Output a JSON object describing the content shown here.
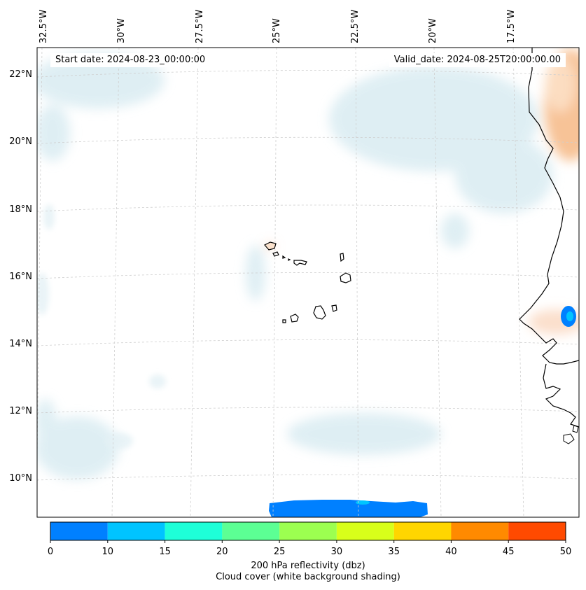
{
  "map": {
    "start_date": "Start date: 2024-08-23_00:00:00",
    "valid_date": "Valid_date: 2024-08-25T20:00:00.00",
    "lon_labels": [
      "32.5°W",
      "30°W",
      "27.5°W",
      "25°W",
      "22.5°W",
      "20°W",
      "17.5°W"
    ],
    "lat_labels": [
      "22°N",
      "20°N",
      "18°N",
      "16°N",
      "14°N",
      "12°N",
      "10°N"
    ]
  },
  "colorbar": {
    "ticks": [
      "0",
      "10",
      "15",
      "20",
      "25",
      "30",
      "35",
      "40",
      "45",
      "50"
    ],
    "colors": [
      "#0080ff",
      "#00c4ff",
      "#1effd8",
      "#5cff94",
      "#9cff50",
      "#d8ff1a",
      "#ffd600",
      "#ff8a00",
      "#ff4a00"
    ],
    "label_line1": "200 hPa reflectivity (dbz)",
    "label_line2": "Cloud cover (white background shading)"
  }
}
